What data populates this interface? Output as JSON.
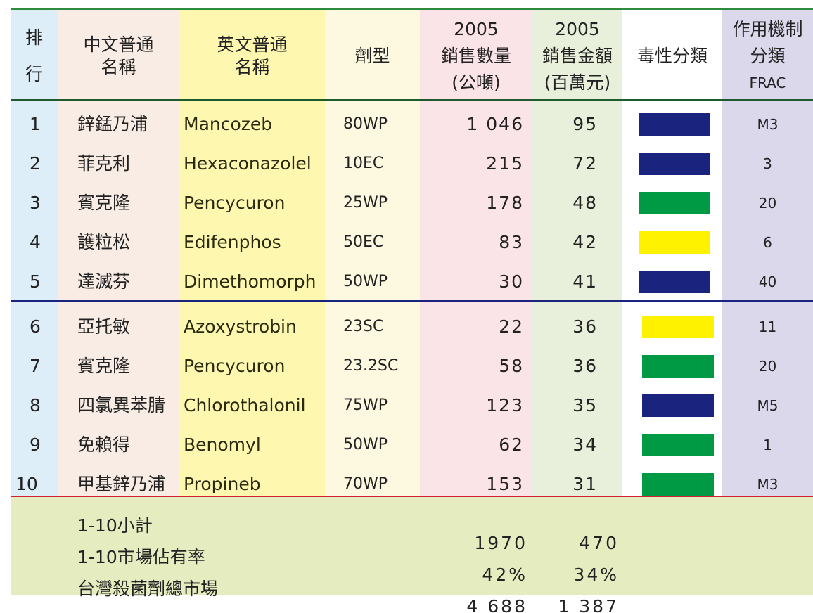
{
  "table": {
    "header": [
      [
        "排",
        "行"
      ],
      [
        "中文普通",
        "名稱"
      ],
      [
        "英文普通",
        "名稱"
      ],
      [
        "劑型"
      ],
      [
        "2005",
        "銷售數量",
        "(公噸)"
      ],
      [
        "2005",
        "銷售金額",
        "(百萬元)"
      ],
      [
        "毒性分類"
      ],
      [
        "作用機制",
        "分類",
        "FRAC"
      ]
    ],
    "rows": [
      [
        "1",
        "鋅錳乃浦",
        "Mancozeb",
        "80WP",
        "1 046",
        "95",
        "#1a237e",
        "M3"
      ],
      [
        "2",
        "菲克利",
        "Hexaconazolel",
        "10EC",
        "215",
        "72",
        "#1a237e",
        "3"
      ],
      [
        "3",
        "賓克隆",
        "Pencycuron",
        "25WP",
        "178",
        "48",
        "#009944",
        "20"
      ],
      [
        "4",
        "護粒松",
        "Edifenphos",
        "50EC",
        "83",
        "42",
        "#fff200",
        "6"
      ],
      [
        "5",
        "達滅芬",
        "Dimethomorph",
        "50WP",
        "30",
        "41",
        "#1a237e",
        "40"
      ],
      [
        "6",
        "亞托敏",
        "Azoxystrobin",
        "23SC",
        "22",
        "36",
        "#fff200",
        "11"
      ],
      [
        "7",
        "賓克隆",
        "Pencycuron",
        "23.2SC",
        "58",
        "36",
        "#009944",
        "20"
      ],
      [
        "8",
        "四氯異苯腈",
        "Chlorothalonil",
        "75WP",
        "123",
        "35",
        "#1a237e",
        "M5"
      ],
      [
        "9",
        "免賴得",
        "Benomyl",
        "50WP",
        "62",
        "34",
        "#009944",
        "1"
      ],
      [
        "10",
        "甲基鋅乃浦",
        "Propineb",
        "70WP",
        "153",
        "31",
        "#009944",
        "M3"
      ]
    ],
    "footer": [
      [
        "1-10小計",
        "1970",
        "470"
      ],
      [
        "1-10市場佔有率",
        "42%",
        "34%"
      ],
      [
        "台灣殺菌劑總市場",
        "4 688",
        "1 387"
      ]
    ]
  }
}
